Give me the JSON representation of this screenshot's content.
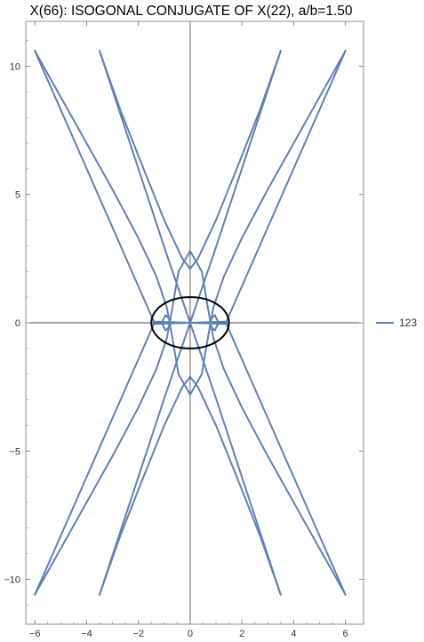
{
  "chart_data": {
    "type": "line",
    "title": "X(66): ISOGONAL CONJUGATE OF X(22), a/b=1.50",
    "xlim": [
      -6.35,
      6.7
    ],
    "ylim": [
      -11.75,
      11.75
    ],
    "x_ticks": [
      -6,
      -4,
      -2,
      0,
      2,
      4,
      6
    ],
    "x_tick_labels": [
      "−6",
      "−4",
      "−2",
      "0",
      "2",
      "4",
      "6"
    ],
    "y_ticks": [
      -10,
      -5,
      0,
      5,
      10
    ],
    "y_tick_labels": [
      "−10",
      "−5",
      "0",
      "5",
      "10"
    ],
    "grid": false,
    "legend_position": "right",
    "series": [
      {
        "name": "123",
        "color": "#5e81b5",
        "curves": [
          {
            "label": "outer-branch-1",
            "points": [
              [
                -6.0,
                10.6
              ],
              [
                -4.5,
                7.9
              ],
              [
                -3.0,
                5.2
              ],
              [
                -2.0,
                3.3
              ],
              [
                -1.3,
                1.8
              ],
              [
                -0.9,
                0.6
              ],
              [
                -0.7,
                -0.5
              ],
              [
                -0.45,
                -2.0
              ],
              [
                0.0,
                -2.8
              ],
              [
                0.45,
                -2.0
              ],
              [
                0.7,
                -0.5
              ],
              [
                0.9,
                0.6
              ],
              [
                1.3,
                1.8
              ],
              [
                2.0,
                3.3
              ],
              [
                3.0,
                5.2
              ],
              [
                4.5,
                7.9
              ],
              [
                6.0,
                10.6
              ]
            ]
          },
          {
            "label": "outer-branch-2",
            "points": [
              [
                -6.0,
                -10.6
              ],
              [
                -4.5,
                -7.9
              ],
              [
                -3.0,
                -5.2
              ],
              [
                -2.0,
                -3.3
              ],
              [
                -1.3,
                -1.8
              ],
              [
                -0.9,
                -0.6
              ],
              [
                -0.7,
                0.5
              ],
              [
                -0.45,
                2.0
              ],
              [
                0.0,
                2.8
              ],
              [
                0.45,
                2.0
              ],
              [
                0.7,
                0.5
              ],
              [
                0.9,
                -0.6
              ],
              [
                1.3,
                -1.8
              ],
              [
                2.0,
                -3.3
              ],
              [
                3.0,
                -5.2
              ],
              [
                4.5,
                -7.9
              ],
              [
                6.0,
                -10.6
              ]
            ]
          },
          {
            "label": "inner-branch-1",
            "points": [
              [
                -3.5,
                10.6
              ],
              [
                -2.7,
                8.3
              ],
              [
                -1.8,
                6.0
              ],
              [
                -1.0,
                4.0
              ],
              [
                -0.3,
                2.5
              ],
              [
                0.0,
                2.1
              ],
              [
                0.3,
                2.5
              ],
              [
                1.0,
                4.0
              ],
              [
                1.8,
                6.0
              ],
              [
                2.7,
                8.3
              ],
              [
                3.5,
                10.6
              ]
            ]
          },
          {
            "label": "inner-branch-2",
            "points": [
              [
                -3.5,
                -10.6
              ],
              [
                -2.7,
                -8.3
              ],
              [
                -1.8,
                -6.0
              ],
              [
                -1.0,
                -4.0
              ],
              [
                -0.3,
                -2.5
              ],
              [
                0.0,
                -2.1
              ],
              [
                0.3,
                -2.5
              ],
              [
                1.0,
                -4.0
              ],
              [
                1.8,
                -6.0
              ],
              [
                2.7,
                -8.3
              ],
              [
                3.5,
                -10.6
              ]
            ]
          },
          {
            "label": "outer-crossing-line-1",
            "points": [
              [
                -6.0,
                10.6
              ],
              [
                -1.4,
                0.05
              ],
              [
                1.4,
                -0.05
              ],
              [
                6.0,
                -10.6
              ]
            ]
          },
          {
            "label": "outer-crossing-line-2",
            "points": [
              [
                -6.0,
                -10.6
              ],
              [
                -1.4,
                -0.05
              ],
              [
                1.4,
                0.05
              ],
              [
                6.0,
                10.6
              ]
            ]
          },
          {
            "label": "inner-crossing-line-1",
            "points": [
              [
                -3.5,
                10.6
              ],
              [
                -0.95,
                2.8
              ],
              [
                0.95,
                -2.8
              ],
              [
                3.5,
                -10.6
              ]
            ]
          },
          {
            "label": "inner-crossing-line-2",
            "points": [
              [
                -3.5,
                -10.6
              ],
              [
                -0.95,
                -2.8
              ],
              [
                0.95,
                2.8
              ],
              [
                3.5,
                10.6
              ]
            ]
          },
          {
            "label": "left-loop",
            "points": [
              [
                -1.1,
                0.0
              ],
              [
                -0.95,
                0.3
              ],
              [
                -0.8,
                0.15
              ],
              [
                -0.78,
                0.0
              ],
              [
                -0.8,
                -0.15
              ],
              [
                -0.95,
                -0.3
              ],
              [
                -1.1,
                0.0
              ]
            ]
          },
          {
            "label": "right-loop",
            "points": [
              [
                1.1,
                0.0
              ],
              [
                0.95,
                0.3
              ],
              [
                0.8,
                0.15
              ],
              [
                0.78,
                0.0
              ],
              [
                0.8,
                -0.15
              ],
              [
                0.95,
                -0.3
              ],
              [
                1.1,
                0.0
              ]
            ]
          }
        ]
      }
    ],
    "ellipse": {
      "color": "#000000",
      "center": [
        0,
        0
      ],
      "semi_axis_x": 1.5,
      "semi_axis_y": 1.0
    }
  }
}
